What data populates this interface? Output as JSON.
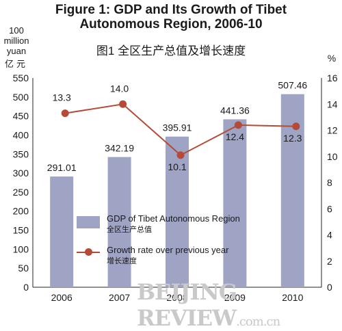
{
  "chart_data": {
    "type": "bar+line",
    "title": "Figure 1: GDP and Its Growth of Tibet\nAutonomous Region, 2006-10",
    "subtitle": "图1  全区生产总值及增长速度",
    "y_left_unit": "100\nmillion\nyuan",
    "y_left_unit_cn": "亿元",
    "y_right_unit": "%",
    "categories": [
      "2006",
      "2007",
      "2008",
      "2009",
      "2010"
    ],
    "y_left_range": [
      0,
      550
    ],
    "y_left_ticks": [
      "0",
      "50",
      "100",
      "150",
      "200",
      "250",
      "300",
      "350",
      "400",
      "450",
      "500",
      "550"
    ],
    "y_right_range": [
      0,
      16
    ],
    "y_right_ticks": [
      "0",
      "2",
      "4",
      "6",
      "8",
      "10",
      "12",
      "14",
      "16"
    ],
    "series": [
      {
        "name": "GDP of Tibet Autonomous Region",
        "name_cn": "全区生产总值",
        "type": "bar",
        "axis": "left",
        "color": "#9fa3c4",
        "values": [
          291.01,
          342.19,
          395.91,
          441.36,
          507.46
        ],
        "labels": [
          "291.01",
          "342.19",
          "395.91",
          "441.36",
          "507.46"
        ]
      },
      {
        "name": "Growth rate over previous year",
        "name_cn": "增长速度",
        "type": "line",
        "axis": "right",
        "color": "#b54a36",
        "values": [
          13.3,
          14.0,
          10.1,
          12.4,
          12.3
        ],
        "labels": [
          "13.3",
          "14.0",
          "10.1",
          "12.4",
          "12.3"
        ]
      }
    ],
    "grid": false,
    "legend_position": "bottom-center"
  },
  "watermark": {
    "main": "BEIJING REVIEW",
    "suffix": ".com.cn"
  }
}
